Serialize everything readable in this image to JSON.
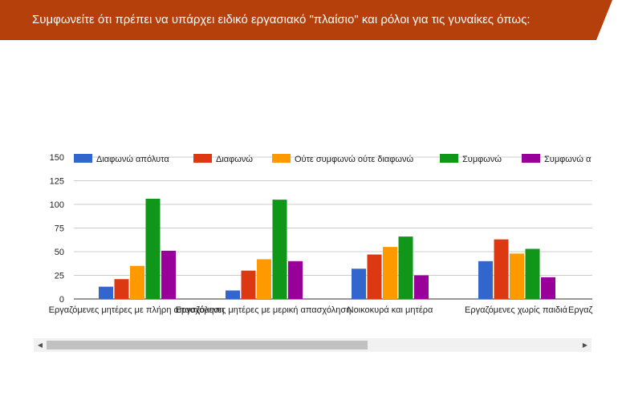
{
  "header": {
    "title": "Συμφωνείτε ότι πρέπει να υπάρχει ειδικό εργασιακό \"πλαίσιο\" και ρόλοι για τις γυναίκες όπως:",
    "bg_color": "#b5400c"
  },
  "scrollbar": {
    "left_arrow": "◀",
    "right_arrow": "▶"
  },
  "chart_data": {
    "type": "bar",
    "categories": [
      "Εργαζόμενες μητέρες με πλήρη απασχόληση",
      "Εργαζόμενες μητέρες με μερική απασχόληση",
      "Νοικοκυρά και μητέρα",
      "Εργαζόμενες χωρίς παιδιά",
      "Εργαζ"
    ],
    "series": [
      {
        "name": "Διαφωνώ απόλυτα",
        "color": "#3366cc",
        "values": [
          13,
          9,
          32,
          40,
          null
        ]
      },
      {
        "name": "Διαφωνώ",
        "color": "#dc3912",
        "values": [
          21,
          30,
          47,
          63,
          null
        ]
      },
      {
        "name": "Ούτε συμφωνώ ούτε διαφωνώ",
        "color": "#ff9900",
        "values": [
          35,
          42,
          55,
          48,
          null
        ]
      },
      {
        "name": "Συμφωνώ",
        "color": "#109618",
        "values": [
          106,
          105,
          66,
          53,
          null
        ]
      },
      {
        "name": "Συμφωνώ α",
        "color": "#990099",
        "values": [
          51,
          40,
          25,
          23,
          null
        ]
      }
    ],
    "yticks": [
      0,
      25,
      50,
      75,
      100,
      125,
      150
    ],
    "ylim": [
      0,
      150
    ],
    "grid": true,
    "legend": "top"
  }
}
